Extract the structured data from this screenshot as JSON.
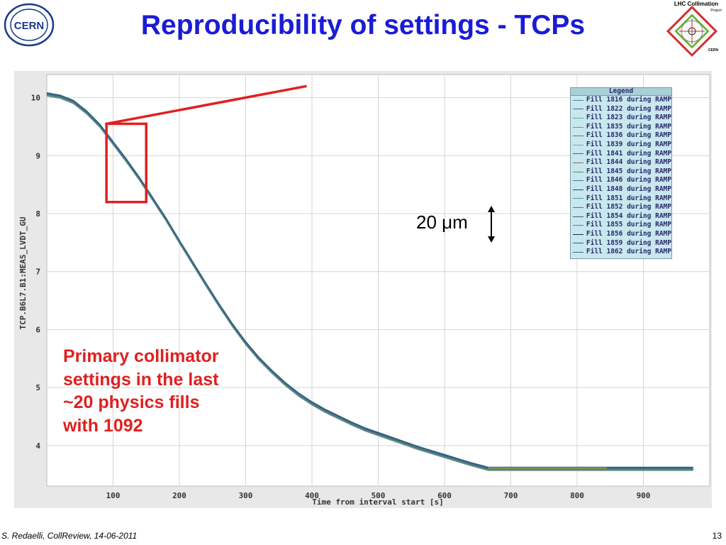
{
  "slide": {
    "title": "Reproducibility of settings - TCPs",
    "footer_left": "S. Redaelli, CollReview, 14-06-2011",
    "page_number": "13",
    "scale_label": "20 μm",
    "annotation": "Primary collimator settings in the last ~20 physics fills with 1092",
    "logos": {
      "cern": "CERN",
      "lhc_title": "LHC Collimation",
      "lhc_sub": "Project",
      "lhc_bottom": "CERN"
    },
    "colors": {
      "title": "#1b1bd6",
      "annotation": "#e02020",
      "legend_bg": "#c8e7ee"
    }
  },
  "chart_data": {
    "type": "line",
    "title": "",
    "xlabel": "Time from interval start [s]",
    "ylabel": "TCP.B6L7.B1:MEAS_LVDT_GU",
    "xlim": [
      0,
      1000
    ],
    "ylim": [
      3.3,
      10.4
    ],
    "x_ticks": [
      100,
      200,
      300,
      400,
      500,
      600,
      700,
      800,
      900
    ],
    "y_ticks": [
      4,
      5,
      6,
      7,
      8,
      9,
      10
    ],
    "grid": true,
    "legend_title": "Legend",
    "legend_position": "top-right",
    "series_names": [
      "Fill 1816 during RAMP",
      "Fill 1822 during RAMP",
      "Fill 1823 during RAMP",
      "Fill 1835 during RAMP",
      "Fill 1836 during RAMP",
      "Fill 1839 during RAMP",
      "Fill 1841 during RAMP",
      "Fill 1844 during RAMP",
      "Fill 1845 during RAMP",
      "Fill 1846 during RAMP",
      "Fill 1848 during RAMP",
      "Fill 1851 during RAMP",
      "Fill 1852 during RAMP",
      "Fill 1854 during RAMP",
      "Fill 1855 during RAMP",
      "Fill 1856 during RAMP",
      "Fill 1859 during RAMP",
      "Fill 1862 during RAMP"
    ],
    "series_colors": [
      "#3a8fa8",
      "#4a6f8a",
      "#5aa8a0",
      "#8a9a30",
      "#707070",
      "#6ab0c0",
      "#3060c0",
      "#8a6a5a",
      "#5a8a6a",
      "#3a7a9a",
      "#2a4a6a",
      "#4a9ab0",
      "#5a7a4a",
      "#3a5a8a",
      "#4a8a9a",
      "#1a2a5a",
      "#2a5a9a",
      "#3a6a8a"
    ],
    "envelope": {
      "x": [
        0,
        20,
        40,
        60,
        80,
        100,
        120,
        140,
        160,
        180,
        200,
        220,
        240,
        260,
        280,
        300,
        320,
        340,
        360,
        380,
        400,
        420,
        440,
        460,
        480,
        500,
        520,
        540,
        560,
        580,
        600,
        620,
        640,
        666,
        700,
        750,
        800,
        850,
        900,
        975
      ],
      "y": [
        10.06,
        10.02,
        9.93,
        9.75,
        9.52,
        9.22,
        8.92,
        8.6,
        8.25,
        7.9,
        7.52,
        7.15,
        6.78,
        6.42,
        6.08,
        5.77,
        5.5,
        5.27,
        5.06,
        4.88,
        4.73,
        4.6,
        4.49,
        4.38,
        4.28,
        4.2,
        4.12,
        4.04,
        3.96,
        3.89,
        3.82,
        3.75,
        3.68,
        3.6,
        3.6,
        3.6,
        3.6,
        3.6,
        3.6,
        3.6
      ]
    },
    "highlight_segment": {
      "x": [
        666,
        845
      ],
      "y": [
        3.61,
        3.61
      ],
      "color": "#a0a830"
    },
    "zoom_box": {
      "x": [
        90,
        150
      ],
      "y": [
        8.2,
        9.55
      ]
    },
    "zoom_pointer_end": {
      "x": 392,
      "y": 10.2
    }
  }
}
